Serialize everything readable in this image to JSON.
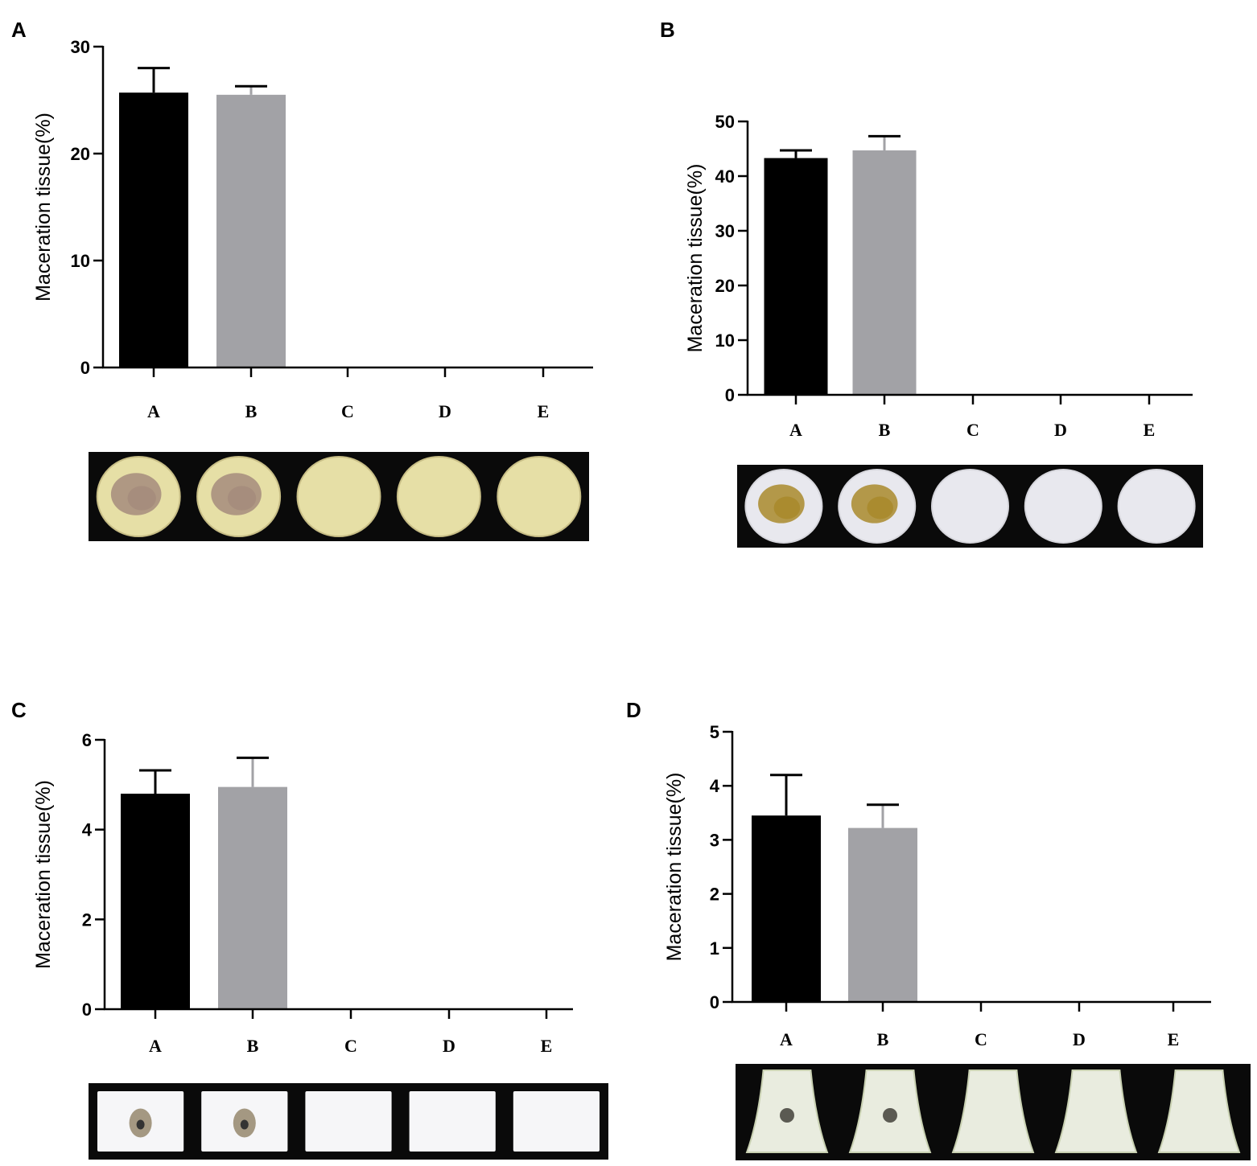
{
  "colors": {
    "bar_a": "#000000",
    "bar_b": "#a2a2a6",
    "axis": "#000000",
    "photo_bg": "#0a0a0a"
  },
  "photo_strips": [
    {
      "panel": "A",
      "specimen": "potato-slice",
      "flesh": "#e6dfa6",
      "lesion": "#a58c7c",
      "lesioned": [
        true,
        true,
        false,
        false,
        false
      ]
    },
    {
      "panel": "B",
      "specimen": "round-slice",
      "flesh": "#e8e8ee",
      "lesion": "#a9892c",
      "lesioned": [
        true,
        true,
        false,
        false,
        false
      ]
    },
    {
      "panel": "C",
      "specimen": "square-block",
      "flesh": "#f6f6f8",
      "lesion": "#9b8e74",
      "lesioned": [
        true,
        true,
        false,
        false,
        false
      ]
    },
    {
      "panel": "D",
      "specimen": "stem-piece",
      "flesh": "#e9ecdf",
      "lesion": "#5b5a52",
      "lesioned": [
        true,
        true,
        false,
        false,
        false
      ]
    }
  ],
  "chart_data": [
    {
      "panel": "A",
      "type": "bar",
      "categories": [
        "A",
        "B",
        "C",
        "D",
        "E"
      ],
      "values": [
        25.7,
        25.5,
        0,
        0,
        0
      ],
      "error": [
        2.3,
        0.8,
        0,
        0,
        0
      ],
      "ylabel": "Maceration tissue(%)",
      "ylim": [
        0,
        30
      ],
      "yticks": [
        "0",
        "10",
        "20",
        "30"
      ],
      "grid": false
    },
    {
      "panel": "B",
      "type": "bar",
      "categories": [
        "A",
        "B",
        "C",
        "D",
        "E"
      ],
      "values": [
        43.3,
        44.7,
        0,
        0,
        0
      ],
      "error": [
        1.4,
        2.6,
        0,
        0,
        0
      ],
      "ylabel": "Maceration tissue(%)",
      "ylim": [
        0,
        50
      ],
      "yticks": [
        "0",
        "10",
        "20",
        "30",
        "40",
        "50"
      ],
      "grid": false
    },
    {
      "panel": "C",
      "type": "bar",
      "categories": [
        "A",
        "B",
        "C",
        "D",
        "E"
      ],
      "values": [
        4.8,
        4.95,
        0,
        0,
        0
      ],
      "error": [
        0.52,
        0.65,
        0,
        0,
        0
      ],
      "ylabel": "Maceration tissue(%)",
      "ylim": [
        0,
        6
      ],
      "yticks": [
        "0",
        "2",
        "4",
        "6"
      ],
      "grid": false
    },
    {
      "panel": "D",
      "type": "bar",
      "categories": [
        "A",
        "B",
        "C",
        "D",
        "E"
      ],
      "values": [
        3.45,
        3.22,
        0,
        0,
        0
      ],
      "error": [
        0.75,
        0.43,
        0,
        0,
        0
      ],
      "ylabel": "Maceration tissue(%)",
      "ylim": [
        0,
        5
      ],
      "yticks": [
        "0",
        "1",
        "2",
        "3",
        "4",
        "5"
      ],
      "grid": false
    }
  ]
}
